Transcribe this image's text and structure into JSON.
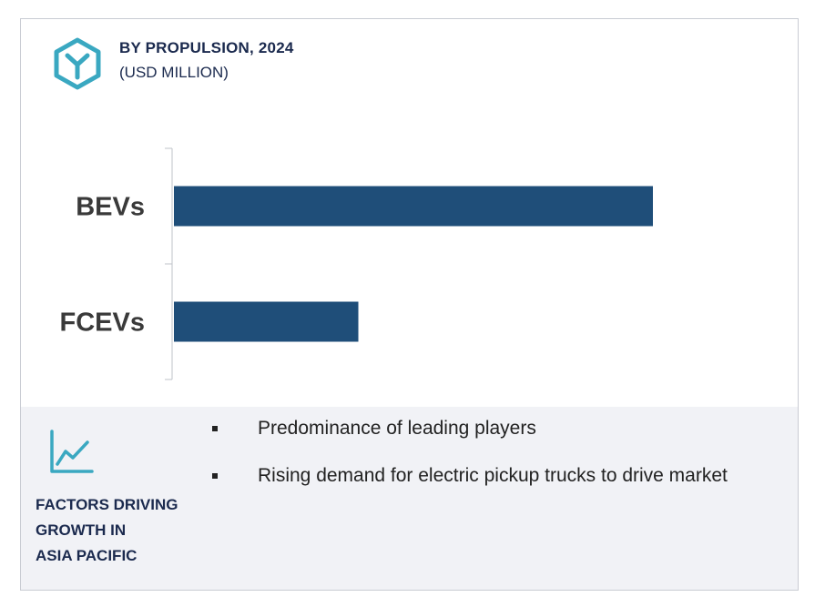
{
  "header": {
    "title": "BY PROPULSION, 2024",
    "subtitle": "(USD MILLION)",
    "icon": "hexagon-logo-icon"
  },
  "colors": {
    "bar": "#1f4e79",
    "accent": "#3aa8c1",
    "title": "#1b2a4e",
    "footer_bg": "#f1f2f6"
  },
  "chart_data": {
    "type": "bar",
    "orientation": "horizontal",
    "categories": [
      "BEVs",
      "FCEVs"
    ],
    "values": [
      100,
      38.5
    ],
    "title": "BY PROPULSION, 2024",
    "subtitle": "(USD MILLION)",
    "xlabel": "",
    "ylabel": "",
    "xlim": [
      0,
      100
    ],
    "grid": false,
    "legend": "none",
    "value_axis_visible": false
  },
  "footer": {
    "icon": "line-chart-icon",
    "factors_lines": [
      "FACTORS DRIVING",
      "GROWTH IN",
      "ASIA PACIFIC"
    ],
    "bullets": [
      "Predominance of leading players",
      "Rising demand for electric pickup trucks to drive market"
    ]
  }
}
